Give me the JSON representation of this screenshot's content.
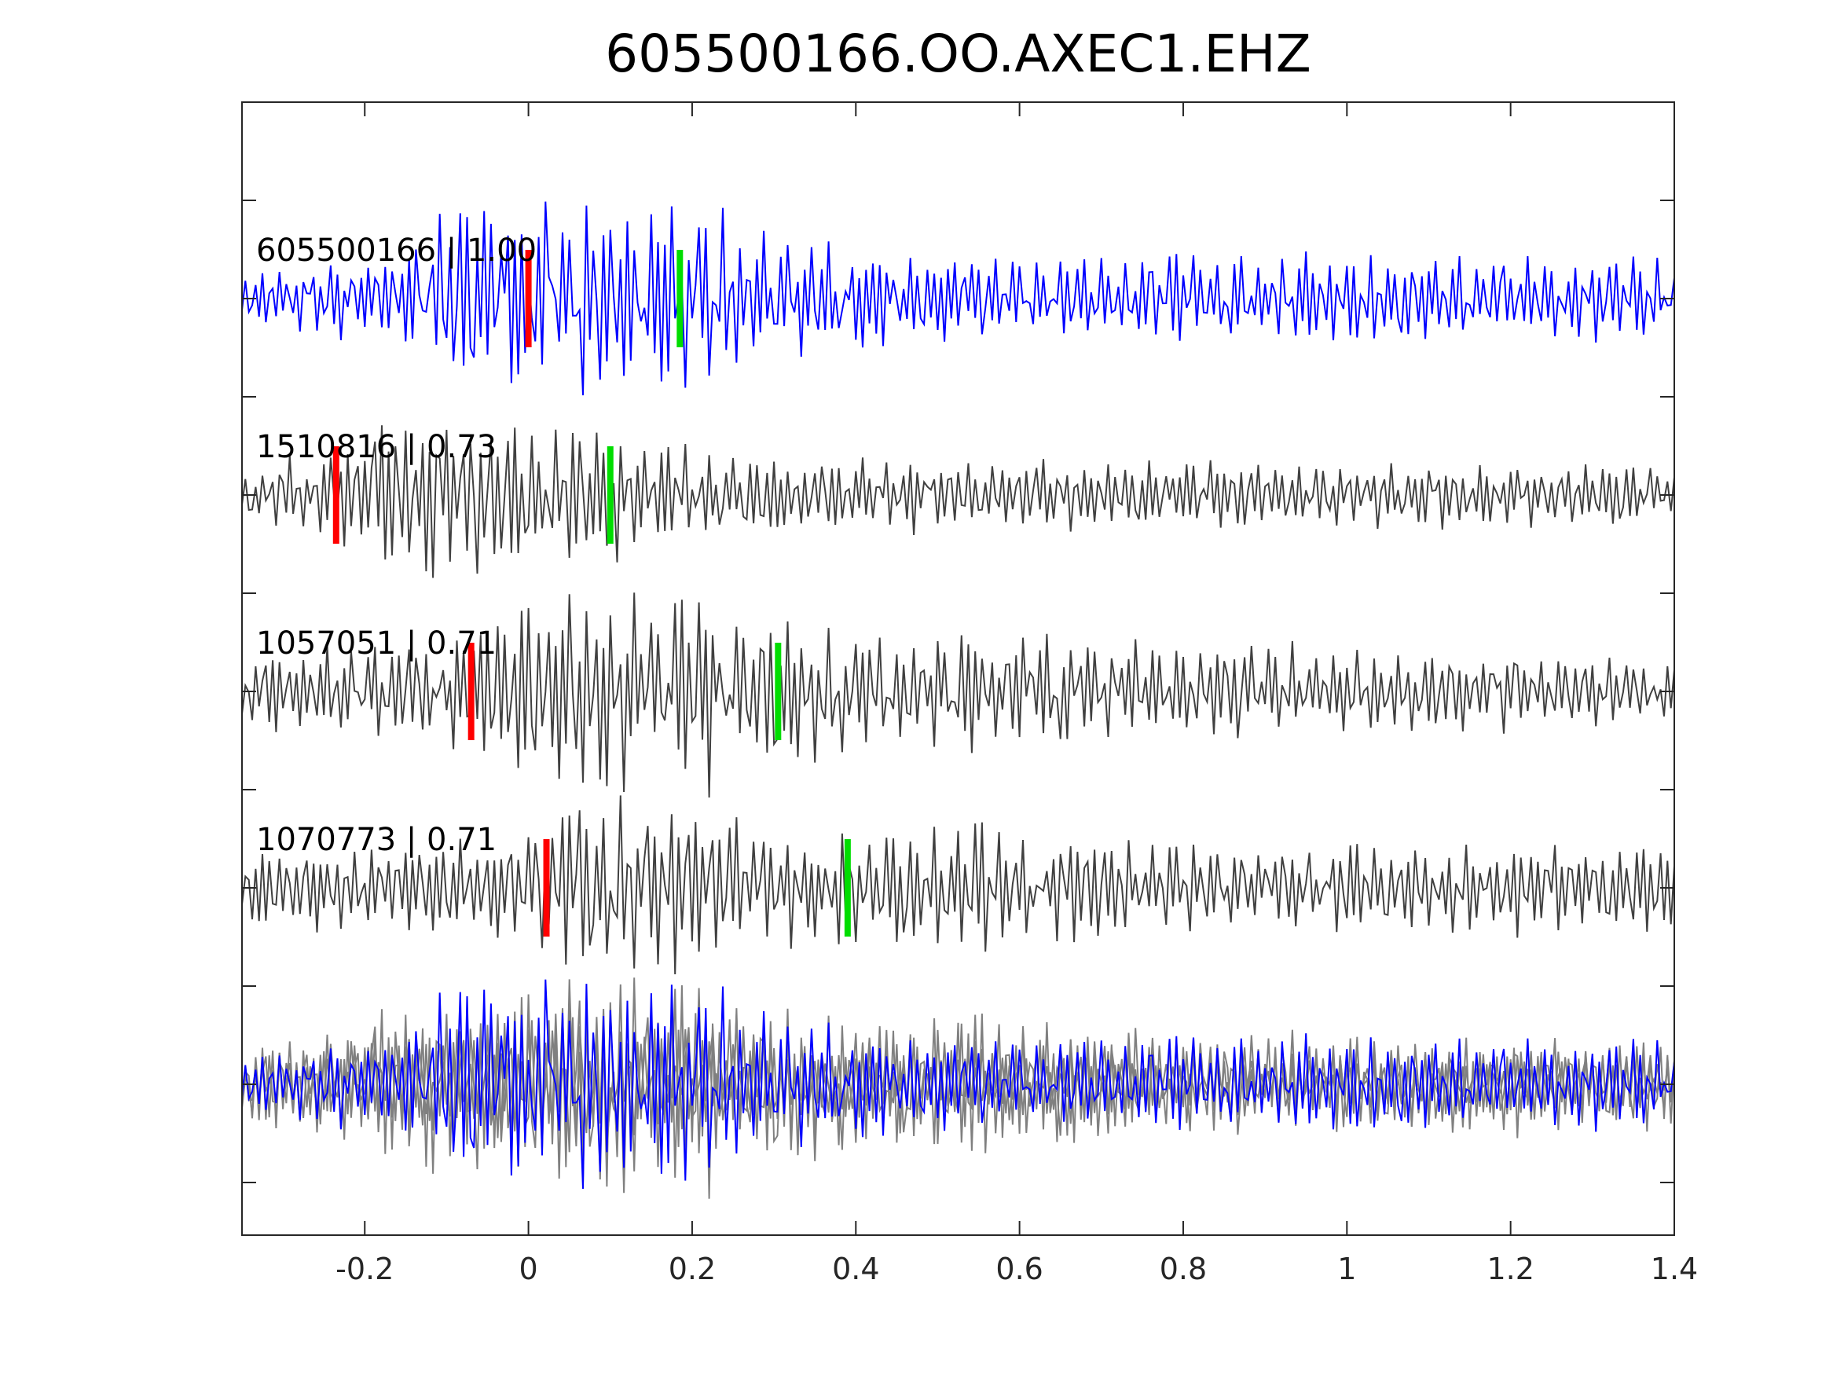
{
  "chart_data": {
    "type": "line",
    "title": "605500166.OO.AXEC1.EHZ",
    "xlabel": "",
    "ylabel": "",
    "xlim": [
      -0.35,
      1.4
    ],
    "x_ticks": [
      -0.2,
      0,
      0.2,
      0.4,
      0.6,
      0.8,
      1,
      1.2,
      1.4
    ],
    "x_tick_labels": [
      "-0.2",
      "0",
      "0.2",
      "0.4",
      "0.6",
      "0.8",
      "1",
      "1.2",
      "1.4"
    ],
    "grid": false,
    "legend": "none",
    "colors": {
      "template": "#0000ff",
      "match": "#404040",
      "overlay_match": "#808080",
      "p_pick": "#ff0000",
      "s_pick": "#00dd00",
      "axis": "#262626"
    },
    "traces": [
      {
        "label": "605500166 | 1.00",
        "event_id": "605500166",
        "correlation": 1.0,
        "color": "#0000ff",
        "p_pick": 0.0,
        "s_pick": 0.185,
        "seed": 11,
        "envelope": [
          [
            -0.35,
            0.3
          ],
          [
            -0.15,
            0.45
          ],
          [
            -0.1,
            0.95
          ],
          [
            0.0,
            1.0
          ],
          [
            0.2,
            0.95
          ],
          [
            0.3,
            0.65
          ],
          [
            0.5,
            0.45
          ],
          [
            1.4,
            0.42
          ]
        ]
      },
      {
        "label": "1510816 | 0.73",
        "event_id": "1510816",
        "correlation": 0.73,
        "color": "#404040",
        "p_pick": -0.235,
        "s_pick": 0.1,
        "seed": 23,
        "envelope": [
          [
            -0.35,
            0.25
          ],
          [
            -0.22,
            0.5
          ],
          [
            -0.15,
            0.95
          ],
          [
            -0.05,
            0.8
          ],
          [
            0.1,
            0.75
          ],
          [
            0.2,
            0.45
          ],
          [
            0.5,
            0.35
          ],
          [
            1.4,
            0.3
          ]
        ]
      },
      {
        "label": "1057051 | 0.71",
        "event_id": "1057051",
        "correlation": 0.71,
        "color": "#404040",
        "p_pick": -0.07,
        "s_pick": 0.305,
        "seed": 37,
        "envelope": [
          [
            -0.35,
            0.35
          ],
          [
            -0.1,
            0.55
          ],
          [
            0.0,
            1.0
          ],
          [
            0.2,
            1.0
          ],
          [
            0.3,
            0.75
          ],
          [
            0.45,
            0.6
          ],
          [
            0.8,
            0.5
          ],
          [
            1.4,
            0.35
          ]
        ]
      },
      {
        "label": "1070773 | 0.71",
        "event_id": "1070773",
        "correlation": 0.71,
        "color": "#404040",
        "p_pick": 0.022,
        "s_pick": 0.39,
        "seed": 53,
        "envelope": [
          [
            -0.35,
            0.4
          ],
          [
            0.0,
            0.5
          ],
          [
            0.05,
            1.0
          ],
          [
            0.2,
            0.8
          ],
          [
            0.3,
            0.55
          ],
          [
            0.5,
            0.7
          ],
          [
            0.8,
            0.45
          ],
          [
            1.4,
            0.45
          ]
        ]
      }
    ],
    "stack": {
      "description_free": true,
      "members": [
        0,
        1,
        2,
        3
      ]
    }
  }
}
